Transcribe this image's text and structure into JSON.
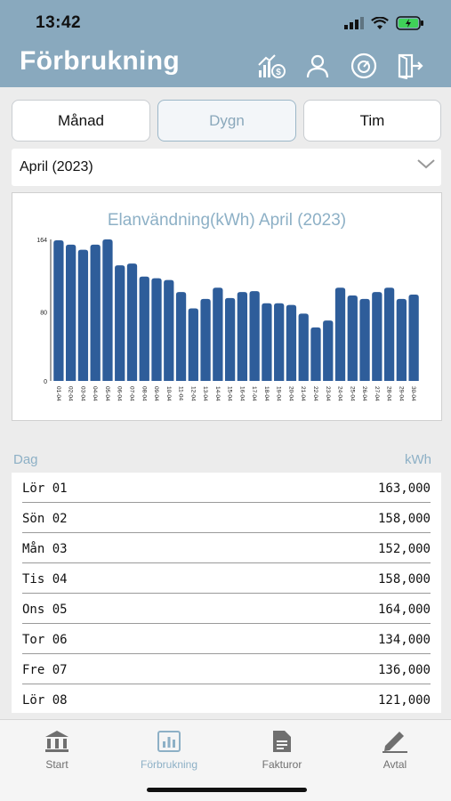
{
  "status": {
    "time": "13:42"
  },
  "header": {
    "title": "Förbrukning",
    "icons": [
      "cost-chart-icon",
      "user-icon",
      "meter-icon",
      "logout-icon"
    ]
  },
  "segments": [
    {
      "label": "Månad",
      "active": false
    },
    {
      "label": "Dygn",
      "active": true
    },
    {
      "label": "Tim",
      "active": false
    }
  ],
  "month_select": {
    "value": "April (2023)"
  },
  "chart_data": {
    "type": "bar",
    "title": "Elanvändning(kWh) April (2023)",
    "categories": [
      "01-04",
      "02-04",
      "03-04",
      "04-04",
      "05-04",
      "06-04",
      "07-04",
      "08-04",
      "09-04",
      "10-04",
      "11-04",
      "12-04",
      "13-04",
      "14-04",
      "15-04",
      "16-04",
      "17-04",
      "18-04",
      "19-04",
      "20-04",
      "21-04",
      "22-04",
      "23-04",
      "24-04",
      "25-04",
      "26-04",
      "27-04",
      "28-04",
      "29-04",
      "30-04"
    ],
    "values": [
      163,
      158,
      152,
      158,
      164,
      134,
      136,
      121,
      119,
      117,
      103,
      84,
      95,
      108,
      96,
      103,
      104,
      90,
      90,
      88,
      78,
      62,
      70,
      108,
      99,
      95,
      103,
      108,
      95,
      100
    ],
    "yticks": [
      0,
      80,
      164
    ],
    "ylim": [
      0,
      164
    ],
    "color": "#2e5d9a"
  },
  "table": {
    "col_day": "Dag",
    "col_value": "kWh",
    "rows": [
      {
        "day": "Lör 01",
        "value": "163,000"
      },
      {
        "day": "Sön 02",
        "value": "158,000"
      },
      {
        "day": "Mån 03",
        "value": "152,000"
      },
      {
        "day": "Tis 04",
        "value": "158,000"
      },
      {
        "day": "Ons 05",
        "value": "164,000"
      },
      {
        "day": "Tor 06",
        "value": "134,000"
      },
      {
        "day": "Fre 07",
        "value": "136,000"
      },
      {
        "day": "Lör 08",
        "value": "121,000"
      }
    ]
  },
  "tabbar": {
    "tabs": [
      {
        "label": "Start",
        "icon": "bank-icon",
        "active": false
      },
      {
        "label": "Förbrukning",
        "icon": "bar-chart-icon",
        "active": true
      },
      {
        "label": "Fakturor",
        "icon": "invoice-icon",
        "active": false
      },
      {
        "label": "Avtal",
        "icon": "pen-icon",
        "active": false
      }
    ]
  },
  "colors": {
    "header": "#89a9be",
    "accent": "#8db0c6",
    "bar": "#2e5d9a",
    "tab_inactive": "#6f6f6f",
    "tab_active": "#8db0c6"
  }
}
